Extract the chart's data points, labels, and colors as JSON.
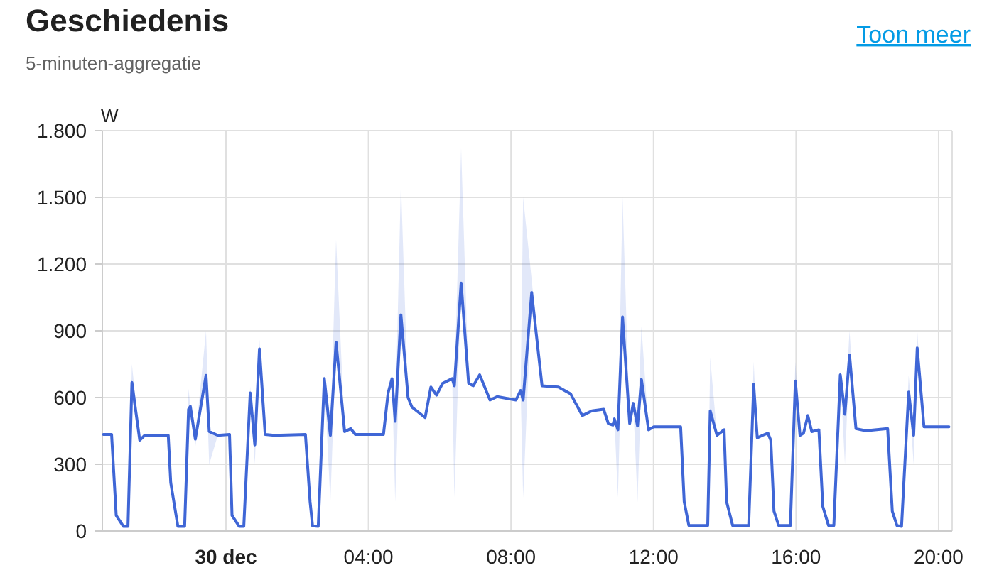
{
  "chart_data": {
    "type": "line",
    "title": "Geschiedenis",
    "subtitle": "5-minuten-aggregatie",
    "ylabel": "W",
    "annotations": [
      "Toon meer"
    ],
    "xlim": [
      -3.47,
      20.38
    ],
    "xticks": [
      {
        "value": 0,
        "label": "30 dec"
      },
      {
        "value": 4,
        "label": "04:00"
      },
      {
        "value": 8,
        "label": "08:00"
      },
      {
        "value": 12,
        "label": "12:00"
      },
      {
        "value": 16,
        "label": "16:00"
      },
      {
        "value": 20,
        "label": "20:00"
      }
    ],
    "ylim": [
      0,
      1800
    ],
    "yticks": [
      0,
      300,
      600,
      900,
      {
        "value": 1200,
        "label": "1.200"
      },
      {
        "value": 1500,
        "label": "1.500"
      },
      {
        "value": 1800,
        "label": "1.800"
      }
    ],
    "grid": true,
    "marker": "none",
    "line_style": "solid",
    "series": [
      {
        "color": "#3f66d6",
        "x": [
          -3.44,
          -3.21,
          -3.08,
          -2.88,
          -2.75,
          -2.64,
          -2.42,
          -2.28,
          -1.62,
          -1.55,
          -1.35,
          -1.16,
          -1.05,
          -1.0,
          -0.86,
          -0.56,
          -0.47,
          -0.23,
          0.1,
          0.17,
          0.37,
          0.5,
          0.68,
          0.81,
          0.94,
          1.1,
          1.36,
          2.23,
          2.36,
          2.43,
          2.59,
          2.76,
          2.93,
          3.09,
          3.33,
          3.5,
          3.63,
          4.42,
          4.55,
          4.66,
          4.75,
          4.91,
          5.11,
          5.22,
          5.59,
          5.75,
          5.91,
          6.08,
          6.35,
          6.41,
          6.6,
          6.81,
          6.94,
          7.12,
          7.41,
          7.61,
          8.14,
          8.27,
          8.34,
          8.58,
          8.87,
          9.33,
          9.67,
          10.0,
          10.27,
          10.6,
          10.73,
          10.86,
          10.9,
          11.0,
          11.13,
          11.33,
          11.43,
          11.55,
          11.66,
          11.86,
          12.0,
          12.12,
          12.76,
          12.86,
          12.99,
          13.52,
          13.59,
          13.78,
          13.98,
          14.05,
          14.22,
          14.67,
          14.81,
          14.91,
          15.06,
          15.21,
          15.29,
          15.38,
          15.51,
          15.84,
          15.98,
          16.11,
          16.21,
          16.33,
          16.44,
          16.64,
          16.75,
          16.91,
          17.06,
          17.24,
          17.37,
          17.5,
          17.68,
          17.96,
          18.57,
          18.7,
          18.83,
          18.96,
          19.16,
          19.3,
          19.4,
          19.59,
          20.29
        ],
        "values": [
          434,
          434,
          70,
          21,
          21,
          668,
          408,
          430,
          430,
          217,
          21,
          21,
          547,
          560,
          413,
          700,
          447,
          430,
          434,
          70,
          21,
          21,
          621,
          387,
          819,
          434,
          430,
          434,
          132,
          23,
          21,
          685,
          430,
          849,
          447,
          460,
          434,
          434,
          621,
          685,
          493,
          972,
          600,
          557,
          510,
          647,
          611,
          664,
          685,
          653,
          1115,
          664,
          653,
          702,
          589,
          604,
          589,
          632,
          589,
          1072,
          653,
          647,
          617,
          519,
          540,
          547,
          483,
          476,
          504,
          455,
          962,
          483,
          574,
          472,
          681,
          455,
          468,
          468,
          468,
          132,
          25,
          25,
          540,
          430,
          455,
          132,
          25,
          25,
          659,
          419,
          430,
          440,
          408,
          89,
          25,
          25,
          674,
          430,
          440,
          519,
          447,
          455,
          110,
          25,
          25,
          702,
          525,
          791,
          460,
          451,
          460,
          89,
          25,
          21,
          625,
          430,
          823,
          468,
          468
        ],
        "lower": [
          434,
          434,
          70,
          21,
          21,
          600,
          408,
          430,
          430,
          217,
          21,
          21,
          500,
          560,
          380,
          700,
          300,
          430,
          434,
          70,
          21,
          21,
          621,
          300,
          819,
          434,
          430,
          434,
          132,
          23,
          21,
          685,
          132,
          849,
          447,
          460,
          434,
          434,
          621,
          685,
          132,
          972,
          600,
          557,
          510,
          647,
          611,
          664,
          685,
          150,
          1115,
          664,
          653,
          702,
          589,
          604,
          589,
          632,
          150,
          1072,
          653,
          647,
          617,
          519,
          540,
          547,
          483,
          476,
          504,
          150,
          962,
          483,
          574,
          130,
          681,
          455,
          468,
          468,
          468,
          132,
          25,
          25,
          540,
          430,
          455,
          132,
          25,
          25,
          659,
          419,
          430,
          440,
          408,
          89,
          25,
          25,
          674,
          430,
          440,
          519,
          447,
          455,
          110,
          25,
          25,
          702,
          300,
          791,
          460,
          451,
          460,
          89,
          25,
          21,
          625,
          300,
          823,
          468,
          468
        ],
        "upper": [
          434,
          434,
          70,
          21,
          21,
          750,
          408,
          430,
          430,
          217,
          21,
          21,
          640,
          560,
          413,
          900,
          447,
          430,
          434,
          70,
          21,
          21,
          650,
          387,
          860,
          434,
          430,
          434,
          132,
          23,
          21,
          700,
          430,
          1310,
          447,
          460,
          434,
          434,
          621,
          685,
          493,
          1570,
          600,
          557,
          510,
          647,
          611,
          664,
          685,
          653,
          1720,
          664,
          653,
          702,
          589,
          604,
          589,
          632,
          1500,
          1130,
          653,
          647,
          617,
          519,
          540,
          547,
          483,
          476,
          504,
          455,
          1500,
          483,
          574,
          472,
          920,
          455,
          468,
          468,
          468,
          132,
          25,
          25,
          780,
          430,
          455,
          132,
          25,
          25,
          760,
          419,
          430,
          440,
          408,
          89,
          25,
          25,
          760,
          430,
          440,
          519,
          447,
          455,
          110,
          25,
          25,
          720,
          525,
          900,
          460,
          451,
          460,
          89,
          25,
          21,
          700,
          430,
          900,
          468,
          468
        ]
      }
    ]
  }
}
